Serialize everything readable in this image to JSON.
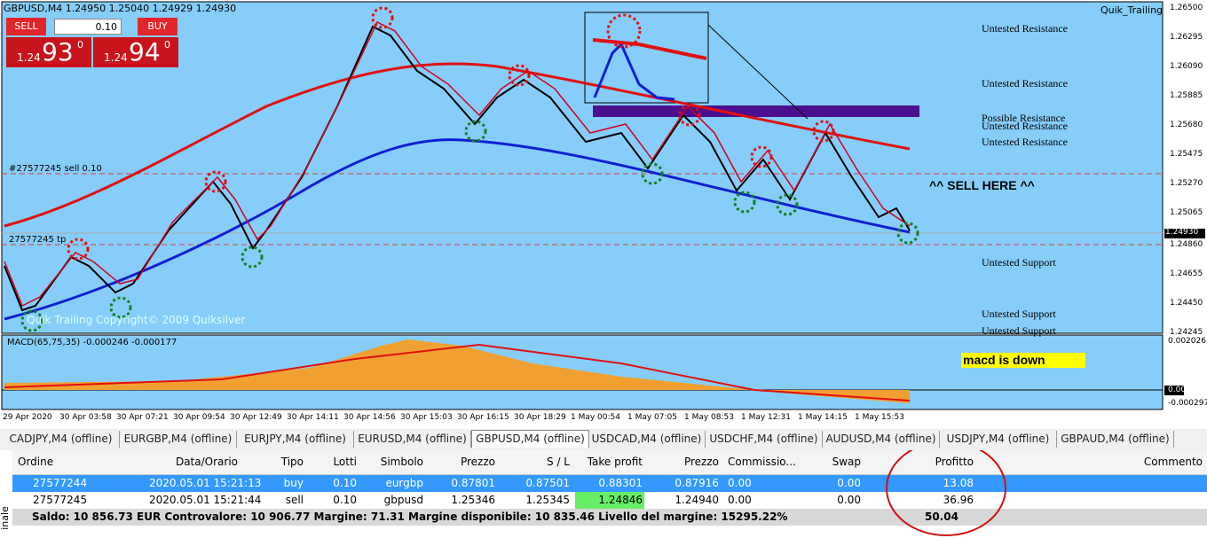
{
  "chart": {
    "header": "GBPUSD,M4  1.24950 1.25040 1.24929 1.24930",
    "indicator": "Quik_Trailing",
    "panel": {
      "sell": "SELL",
      "buy": "BUY",
      "lot": "0.10",
      "sell_big": "1.24",
      "sell_pips": "93",
      "sell_sup": "0",
      "buy_big": "1.24",
      "buy_pips": "94",
      "buy_sup": "0"
    },
    "price_labels": [
      "1.26500",
      "1.26295",
      "1.26090",
      "1.25885",
      "1.25680",
      "1.25475",
      "1.25270",
      "1.25065",
      "1.24860",
      "1.24655",
      "1.24450",
      "1.24245"
    ],
    "current_price": "1.24930",
    "annotations": [
      "Untested Resistance",
      "Untested Resistance",
      "Possible Resistance",
      "Untested Resistance",
      "Untested Resistance",
      "Untested Support",
      "Untested Support",
      "Untested Support"
    ],
    "sell_here": "^^ SELL HERE ^^",
    "order_line": "#27577245 sell 0.10",
    "tp_line": "27577245 tp",
    "copyright": "Quik Trailing   Copyright© 2009  Quiksilver",
    "macd_label": "MACD(65,75,35) -0.000246 -0.000177",
    "macd_note": "macd is down",
    "macd_axis": [
      "0.002026",
      "0.00",
      "-0.000297"
    ],
    "time_labels": [
      "29 Apr 2020",
      "30 Apr 03:58",
      "30 Apr 07:21",
      "30 Apr 09:54",
      "30 Apr 12:49",
      "30 Apr 14:11",
      "30 Apr 14:56",
      "30 Apr 15:03",
      "30 Apr 16:15",
      "30 Apr 18:29",
      "1 May 00:54",
      "1 May 07:05",
      "1 May 08:53",
      "1 May 12:31",
      "1 May 14:15",
      "1 May 15:53"
    ]
  },
  "tabs": [
    "CADJPY,M4 (offline)",
    "EURGBP,M4 (offline)",
    "EURJPY,M4 (offline)",
    "EURUSD,M4 (offline)",
    "GBPUSD,M4 (offline)",
    "USDCAD,M4 (offline)",
    "USDCHF,M4 (offline)",
    "AUDUSD,M4 (offline)",
    "USDJPY,M4 (offline)",
    "GBPAUD,M4 (offline)"
  ],
  "table": {
    "columns": [
      "Ordine",
      "Data/Orario",
      "Tipo",
      "Lotti",
      "Simbolo",
      "Prezzo",
      "S / L",
      "Take profit",
      "Prezzo",
      "Commissio...",
      "Swap",
      "Profitto",
      "Commento"
    ],
    "rows": [
      [
        "27577244",
        "2020.05.01 15:21:13",
        "buy",
        "0.10",
        "eurgbp",
        "0.87801",
        "0.87501",
        "0.88301",
        "0.87916",
        "0.00",
        "0.00",
        "13.08"
      ],
      [
        "27577245",
        "2020.05.01 15:21:44",
        "sell",
        "0.10",
        "gbpusd",
        "1.25346",
        "1.25345",
        "1.24846",
        "1.24940",
        "0.00",
        "0.00",
        "36.96"
      ]
    ],
    "summary": "Saldo: 10 856.73 EUR  Controvalore: 10 906.77  Margine: 71.31  Margine disponibile: 10 835.46  Livello del margine: 15295.22%",
    "summary_profit": "50.04"
  },
  "side_label": "inale"
}
